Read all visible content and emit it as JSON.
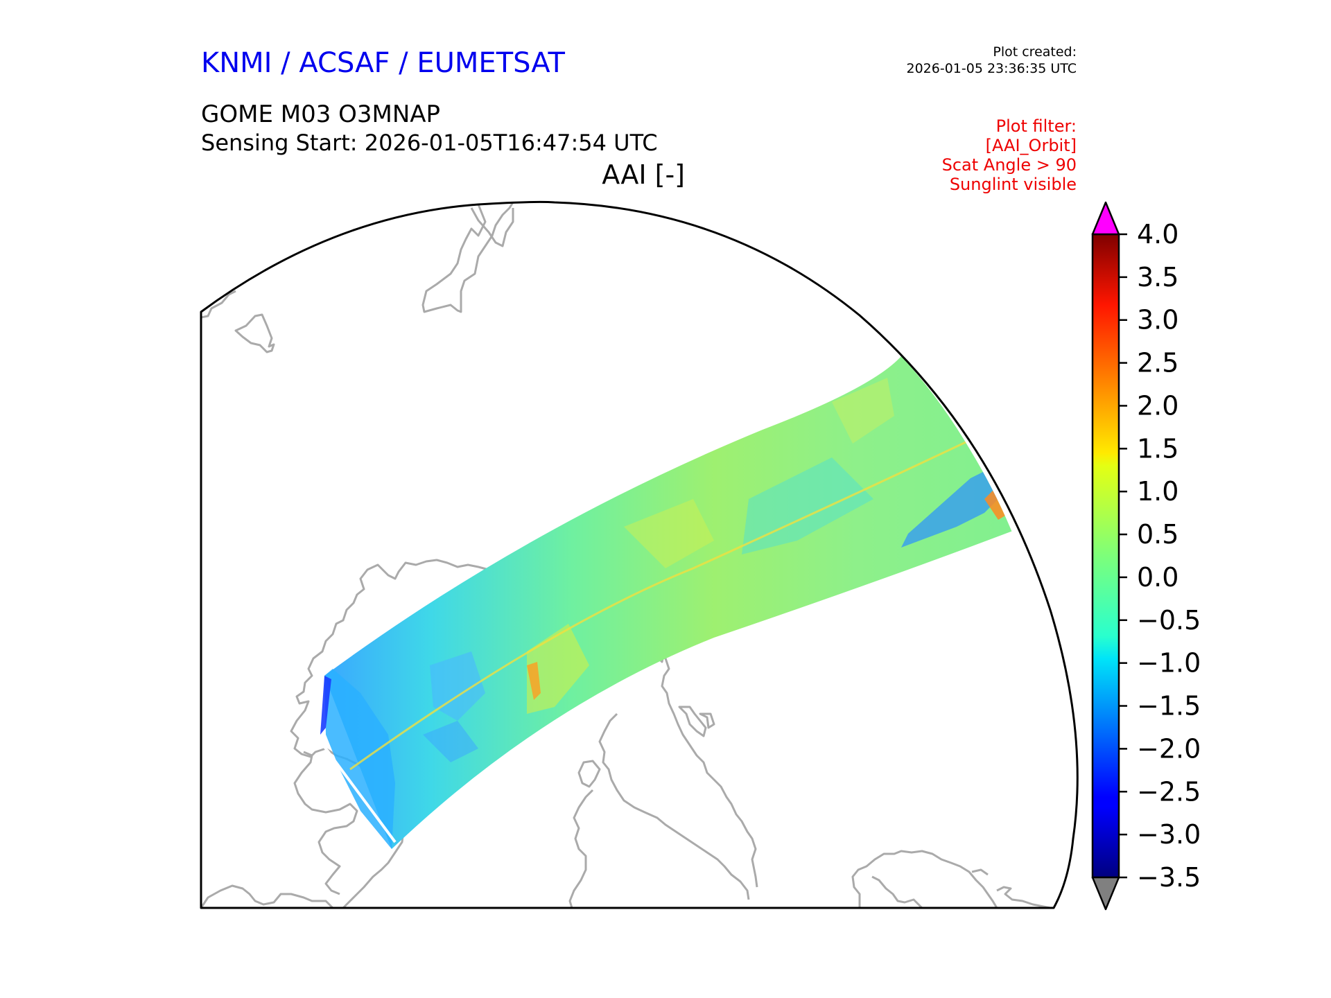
{
  "header": {
    "agency": "KNMI / ACSAF / EUMETSAT",
    "plot_created_label": "Plot created:",
    "plot_created_time": "2026-01-05 23:36:35 UTC",
    "product": "GOME M03 O3MNAP",
    "sensing_start": "Sensing Start: 2026-01-05T16:47:54 UTC",
    "parameter": "AAI [-]"
  },
  "filter": {
    "lines": [
      "Plot filter:",
      "[AAI_Orbit]",
      "Scat Angle > 90",
      "Sunglint visible"
    ]
  },
  "colorbar": {
    "ticks": [
      "4.0",
      "3.5",
      "3.0",
      "2.5",
      "2.0",
      "1.5",
      "1.0",
      "0.5",
      "0.0",
      "−0.5",
      "−1.0",
      "−1.5",
      "−2.0",
      "−2.5",
      "−3.0",
      "−3.5"
    ],
    "min": -3.5,
    "max": 4.0,
    "over_color": "#ff00ff",
    "under_color": "#808080",
    "colormap": "jet"
  },
  "map": {
    "coastline_color": "#aaaaaa",
    "frame_color": "#000000"
  }
}
